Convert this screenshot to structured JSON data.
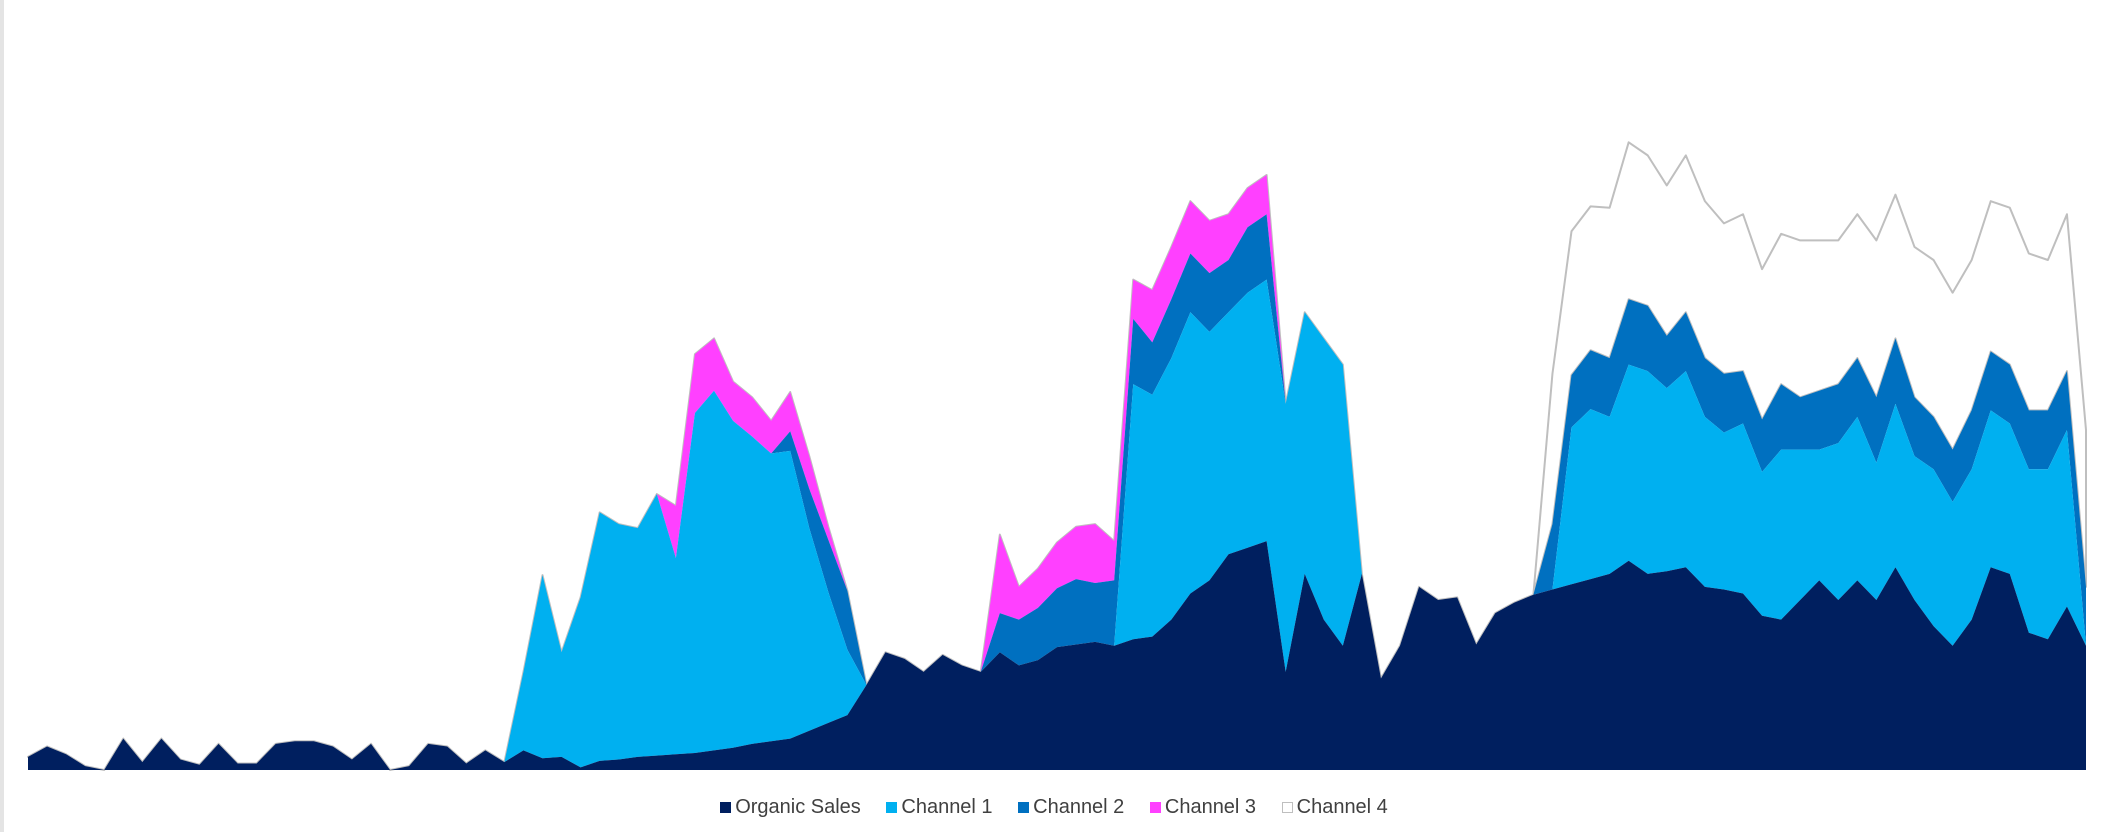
{
  "chart_data": {
    "type": "area",
    "stacked": true,
    "grid": false,
    "axes_visible": false,
    "legend_position": "bottom",
    "title": "",
    "xlabel": "",
    "ylabel": "",
    "ylim": [
      0,
      520
    ],
    "x": [
      0,
      1,
      2,
      3,
      4,
      5,
      6,
      7,
      8,
      9,
      10,
      11,
      12,
      13,
      14,
      15,
      16,
      17,
      18,
      19,
      20,
      21,
      22,
      23,
      24,
      25,
      26,
      27,
      28,
      29,
      30,
      31,
      32,
      33,
      34,
      35,
      36,
      37,
      38,
      39,
      40,
      41,
      42,
      43,
      44,
      45,
      46,
      47,
      48,
      49,
      50,
      51,
      52,
      53,
      54,
      55,
      56,
      57,
      58,
      59,
      60,
      61,
      62,
      63,
      64,
      65,
      66,
      67,
      68,
      69,
      70,
      71,
      72,
      73,
      74,
      75,
      76,
      77,
      78,
      79,
      80,
      81,
      82,
      83,
      84,
      85,
      86,
      87,
      88,
      89,
      90,
      91,
      92,
      93,
      94,
      95,
      96,
      97,
      98,
      99,
      100,
      101,
      102,
      103,
      104,
      105,
      106,
      107,
      108
    ],
    "series": [
      {
        "name": "Organic Sales",
        "color": "#001f5f",
        "values": [
          10,
          18,
          12,
          3,
          0,
          24,
          6,
          24,
          8,
          4,
          20,
          5,
          5,
          20,
          22,
          22,
          18,
          8,
          20,
          0,
          3,
          20,
          18,
          5,
          15,
          6,
          15,
          9,
          10,
          2,
          7,
          8,
          10,
          11,
          12,
          13,
          15,
          17,
          20,
          22,
          24,
          30,
          36,
          42,
          65,
          90,
          85,
          75,
          88,
          80,
          75,
          90,
          80,
          84,
          94,
          96,
          98,
          95,
          100,
          102,
          115,
          135,
          145,
          165,
          170,
          175,
          75,
          150,
          115,
          95,
          150,
          70,
          95,
          140,
          130,
          132,
          96,
          120,
          128,
          134,
          138,
          142,
          146,
          150,
          160,
          150,
          152,
          155,
          140,
          138,
          135,
          118,
          115,
          130,
          145,
          130,
          145,
          130,
          155,
          130,
          110,
          95,
          115,
          155,
          150,
          105,
          100,
          125,
          95
        ],
        "_start_note": "placeholder removed"
      }
    ]
  },
  "legend": {
    "items": [
      {
        "label": "Organic Sales",
        "color": "#001f5f"
      },
      {
        "label": "Channel 1",
        "color": "#00b0f0"
      },
      {
        "label": "Channel 2",
        "color": "#0070c0"
      },
      {
        "label": "Channel 3",
        "color": "#ff40ff"
      },
      {
        "label": "Channel 4",
        "color": "#ffffff"
      }
    ]
  }
}
